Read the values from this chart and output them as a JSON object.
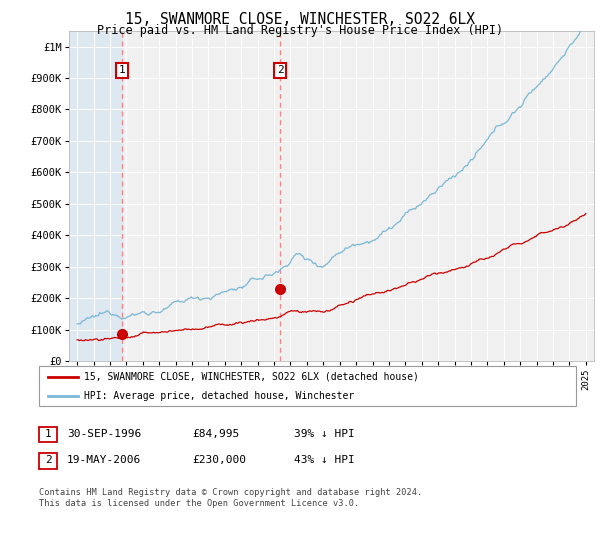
{
  "title": "15, SWANMORE CLOSE, WINCHESTER, SO22 6LX",
  "subtitle": "Price paid vs. HM Land Registry's House Price Index (HPI)",
  "ylim": [
    0,
    1050000
  ],
  "yticks": [
    0,
    100000,
    200000,
    300000,
    400000,
    500000,
    600000,
    700000,
    800000,
    900000,
    1000000
  ],
  "ytick_labels": [
    "£0",
    "£100K",
    "£200K",
    "£300K",
    "£400K",
    "£500K",
    "£600K",
    "£700K",
    "£800K",
    "£900K",
    "£1M"
  ],
  "sale1_date": 1996.75,
  "sale1_price": 84995,
  "sale2_date": 2006.38,
  "sale2_price": 230000,
  "sale_color": "#cc0000",
  "hpi_color": "#7ab8d8",
  "vline_color": "#ee8888",
  "legend1_text": "15, SWANMORE CLOSE, WINCHESTER, SO22 6LX (detached house)",
  "legend2_text": "HPI: Average price, detached house, Winchester",
  "table_row1": [
    "1",
    "30-SEP-1996",
    "£84,995",
    "39% ↓ HPI"
  ],
  "table_row2": [
    "2",
    "19-MAY-2006",
    "£230,000",
    "43% ↓ HPI"
  ],
  "footer": "Contains HM Land Registry data © Crown copyright and database right 2024.\nThis data is licensed under the Open Government Licence v3.0.",
  "bg_color": "#ffffff",
  "plot_bg_color": "#f0f0f0",
  "hatch_bg_color": "#dde8f0",
  "grid_color": "#ffffff",
  "xlim_start": 1993.5,
  "xlim_end": 2025.5
}
